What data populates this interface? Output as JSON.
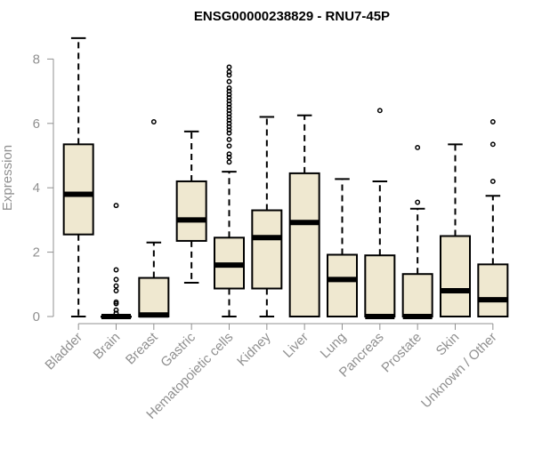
{
  "chart_data": {
    "type": "boxplot",
    "title": "ENSG00000238829 - RNU7-45P",
    "xlabel": "",
    "ylabel": "Expression",
    "ylim": [
      0,
      8.7
    ],
    "yticks": [
      0,
      2,
      4,
      6,
      8
    ],
    "grid": false,
    "colors": {
      "box_fill": "#efe8d0",
      "box_stroke": "#000000",
      "median": "#000000",
      "axis": "#909090",
      "text": "#909090"
    },
    "categories": [
      "Bladder",
      "Brain",
      "Breast",
      "Gastric",
      "Hematopoietic cells",
      "Kidney",
      "Liver",
      "Lung",
      "Pancreas",
      "Prostate",
      "Skin",
      "Unknown / Other"
    ],
    "boxes": [
      {
        "category": "Bladder",
        "whisker_low": 0,
        "q1": 2.55,
        "median": 3.8,
        "q3": 5.35,
        "whisker_high": 8.65,
        "outliers": []
      },
      {
        "category": "Brain",
        "whisker_low": 0,
        "q1": 0,
        "median": 0,
        "q3": 0,
        "whisker_high": 0,
        "outliers": [
          0.1,
          0.2,
          0.4,
          0.45,
          0.8,
          0.95,
          1.15,
          1.45,
          3.45
        ]
      },
      {
        "category": "Breast",
        "whisker_low": 0,
        "q1": 0,
        "median": 0.05,
        "q3": 1.2,
        "whisker_high": 2.3,
        "outliers": [
          6.05
        ]
      },
      {
        "category": "Gastric",
        "whisker_low": 1.05,
        "q1": 2.35,
        "median": 3.0,
        "q3": 4.2,
        "whisker_high": 5.75,
        "outliers": []
      },
      {
        "category": "Hematopoietic cells",
        "whisker_low": 0,
        "q1": 0.87,
        "median": 1.6,
        "q3": 2.45,
        "whisker_high": 4.5,
        "outliers": [
          4.8,
          4.95,
          5.05,
          5.3,
          5.5,
          5.7,
          5.8,
          5.9,
          6.0,
          6.1,
          6.2,
          6.3,
          6.4,
          6.5,
          6.6,
          6.7,
          6.8,
          6.9,
          7.0,
          7.1,
          7.3,
          7.5,
          7.6,
          7.75
        ]
      },
      {
        "category": "Kidney",
        "whisker_low": 0,
        "q1": 0.87,
        "median": 2.45,
        "q3": 3.3,
        "whisker_high": 6.2,
        "outliers": []
      },
      {
        "category": "Liver",
        "whisker_low": 0,
        "q1": 0,
        "median": 2.92,
        "q3": 4.45,
        "whisker_high": 6.25,
        "outliers": []
      },
      {
        "category": "Lung",
        "whisker_low": 0,
        "q1": 0,
        "median": 1.15,
        "q3": 1.92,
        "whisker_high": 4.27,
        "outliers": []
      },
      {
        "category": "Pancreas",
        "whisker_low": 0,
        "q1": 0,
        "median": 0,
        "q3": 1.9,
        "whisker_high": 4.2,
        "outliers": [
          6.4
        ]
      },
      {
        "category": "Prostate",
        "whisker_low": 0,
        "q1": 0,
        "median": 0,
        "q3": 1.32,
        "whisker_high": 3.35,
        "outliers": [
          3.55,
          5.25
        ]
      },
      {
        "category": "Skin",
        "whisker_low": 0,
        "q1": 0,
        "median": 0.8,
        "q3": 2.5,
        "whisker_high": 5.35,
        "outliers": []
      },
      {
        "category": "Unknown / Other",
        "whisker_low": 0,
        "q1": 0,
        "median": 0.52,
        "q3": 1.62,
        "whisker_high": 3.75,
        "outliers": [
          4.2,
          5.35,
          6.05
        ]
      }
    ]
  }
}
